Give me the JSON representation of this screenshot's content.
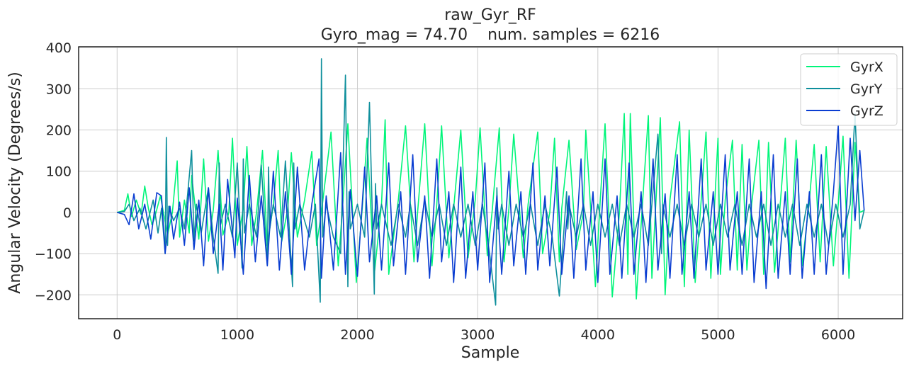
{
  "chart_data": {
    "type": "line",
    "title": "raw_Gyr_RF",
    "subtitle": "Gyro_mag = 74.70    num. samples = 6216",
    "xlabel": "Sample",
    "ylabel": "Angular Velocity (Degrees/s)",
    "xlim": [
      -320,
      6536
    ],
    "ylim": [
      -258,
      402
    ],
    "xticks": [
      0,
      1000,
      2000,
      3000,
      4000,
      5000,
      6000
    ],
    "xtick_labels": [
      "0",
      "1000",
      "2000",
      "3000",
      "4000",
      "5000",
      "6000"
    ],
    "yticks": [
      -200,
      -100,
      0,
      100,
      200,
      300,
      400
    ],
    "ytick_labels": [
      "−200",
      "−100",
      "0",
      "100",
      "200",
      "300",
      "400"
    ],
    "grid": true,
    "legend_position": "top-right",
    "series": [
      {
        "name": "GyrX",
        "color": "#00f57a",
        "x": [
          0,
          60,
          90,
          120,
          160,
          200,
          230,
          260,
          290,
          310,
          360,
          420,
          460,
          500,
          520,
          560,
          600,
          620,
          680,
          720,
          760,
          800,
          840,
          880,
          930,
          960,
          1000,
          1050,
          1080,
          1120,
          1160,
          1210,
          1250,
          1300,
          1340,
          1370,
          1420,
          1450,
          1500,
          1560,
          1620,
          1660,
          1700,
          1780,
          1840,
          1880,
          1920,
          1990,
          2040,
          2080,
          2140,
          2200,
          2230,
          2260,
          2340,
          2400,
          2470,
          2500,
          2560,
          2620,
          2660,
          2700,
          2760,
          2800,
          2860,
          2920,
          2980,
          3020,
          3080,
          3120,
          3180,
          3220,
          3260,
          3300,
          3380,
          3420,
          3500,
          3540,
          3600,
          3640,
          3680,
          3700,
          3760,
          3820,
          3880,
          3900,
          3980,
          4020,
          4060,
          4120,
          4180,
          4220,
          4250,
          4270,
          4320,
          4380,
          4420,
          4450,
          4520,
          4560,
          4600,
          4680,
          4720,
          4760,
          4810,
          4860,
          4900,
          4940,
          5000,
          5020,
          5060,
          5120,
          5160,
          5200,
          5240,
          5280,
          5340,
          5380,
          5420,
          5470,
          5520,
          5560,
          5600,
          5650,
          5700,
          5760,
          5800,
          5850,
          5900,
          5960,
          6000,
          6040,
          6090,
          6140,
          6180,
          6216
        ],
        "values": [
          0,
          5,
          45,
          -10,
          30,
          -5,
          64,
          10,
          -30,
          -15,
          40,
          -55,
          0,
          125,
          -60,
          30,
          -50,
          90,
          -65,
          130,
          -70,
          5,
          150,
          -55,
          0,
          180,
          -80,
          10,
          160,
          -80,
          0,
          150,
          -80,
          20,
          150,
          -70,
          10,
          145,
          -60,
          30,
          148,
          -80,
          0,
          195,
          -130,
          30,
          215,
          -170,
          10,
          180,
          -150,
          20,
          225,
          -150,
          30,
          210,
          -120,
          0,
          215,
          -130,
          20,
          210,
          -110,
          10,
          200,
          -110,
          30,
          205,
          -105,
          0,
          205,
          -120,
          10,
          190,
          -110,
          20,
          195,
          -100,
          0,
          180,
          -120,
          10,
          175,
          -90,
          0,
          200,
          -180,
          30,
          215,
          -205,
          0,
          240,
          -150,
          240,
          -210,
          60,
          235,
          -160,
          230,
          -200,
          30,
          220,
          -180,
          200,
          -170,
          30,
          195,
          -160,
          180,
          -150,
          30,
          175,
          -140,
          165,
          -140,
          20,
          175,
          -150,
          170,
          -145,
          30,
          180,
          -120,
          175,
          -130,
          30,
          165,
          -120,
          160,
          -130,
          20,
          185,
          -160,
          170,
          0,
          5
        ],
        "_": 0
      },
      {
        "name": "GyrY",
        "color": "#0e8f9c",
        "x": [
          0,
          60,
          100,
          140,
          190,
          240,
          300,
          340,
          370,
          400,
          410,
          420,
          430,
          470,
          520,
          560,
          620,
          640,
          660,
          700,
          760,
          800,
          840,
          850,
          860,
          900,
          960,
          1000,
          1040,
          1050,
          1060,
          1100,
          1160,
          1200,
          1250,
          1260,
          1270,
          1300,
          1360,
          1400,
          1460,
          1470,
          1480,
          1520,
          1600,
          1650,
          1690,
          1700,
          1710,
          1740,
          1800,
          1860,
          1900,
          1920,
          1930,
          1940,
          2000,
          2060,
          2100,
          2140,
          2150,
          2160,
          2200,
          2280,
          2340,
          2400,
          2440,
          2500,
          2560,
          2620,
          2680,
          2740,
          2800,
          2860,
          2920,
          2980,
          3040,
          3100,
          3150,
          3160,
          3170,
          3200,
          3260,
          3320,
          3380,
          3440,
          3500,
          3560,
          3620,
          3680,
          3740,
          3750,
          3760,
          3820,
          3880,
          3940,
          4000,
          4060,
          4120,
          4180,
          4240,
          4300,
          4360,
          4420,
          4500,
          4530,
          4540,
          4600,
          4660,
          4720,
          4780,
          4840,
          4900,
          4960,
          5020,
          5080,
          5140,
          5200,
          5260,
          5320,
          5380,
          5440,
          5500,
          5560,
          5620,
          5680,
          5740,
          5800,
          5860,
          5920,
          5980,
          6040,
          6100,
          6140,
          6180,
          6216
        ],
        "values": [
          0,
          2,
          20,
          -20,
          10,
          -40,
          30,
          -50,
          10,
          -100,
          182,
          -80,
          15,
          -20,
          10,
          -40,
          150,
          -70,
          20,
          -50,
          60,
          -60,
          -148,
          120,
          -30,
          20,
          -60,
          120,
          -135,
          130,
          -50,
          20,
          -60,
          115,
          -128,
          110,
          -40,
          20,
          -60,
          125,
          -180,
          120,
          -40,
          20,
          -60,
          20,
          -218,
          373,
          -60,
          20,
          -60,
          -100,
          333,
          -180,
          50,
          -40,
          20,
          -60,
          267,
          -198,
          70,
          -40,
          20,
          -80,
          20,
          -60,
          20,
          -80,
          30,
          -60,
          20,
          -80,
          20,
          -60,
          20,
          -80,
          20,
          -100,
          -225,
          60,
          -40,
          20,
          -80,
          20,
          -60,
          20,
          -80,
          20,
          -60,
          -203,
          50,
          -40,
          20,
          -60,
          20,
          -80,
          20,
          -60,
          20,
          -80,
          20,
          -60,
          20,
          -80,
          190,
          -100,
          20,
          -60,
          20,
          -80,
          20,
          -60,
          20,
          -80,
          20,
          -60,
          20,
          -80,
          20,
          -60,
          20,
          -80,
          20,
          -60,
          20,
          -80,
          20,
          -60,
          20,
          -80,
          20,
          -60,
          20,
          240,
          -40,
          5
        ],
        "_": 0
      },
      {
        "name": "GyrZ",
        "color": "#0a3dd1",
        "x": [
          0,
          60,
          100,
          140,
          180,
          230,
          280,
          330,
          370,
          400,
          440,
          470,
          520,
          560,
          600,
          640,
          680,
          720,
          760,
          800,
          850,
          880,
          920,
          980,
          1000,
          1050,
          1100,
          1150,
          1200,
          1250,
          1300,
          1350,
          1400,
          1450,
          1500,
          1560,
          1620,
          1680,
          1700,
          1740,
          1800,
          1860,
          1900,
          1940,
          2000,
          2060,
          2100,
          2160,
          2200,
          2260,
          2300,
          2360,
          2400,
          2460,
          2500,
          2560,
          2600,
          2660,
          2700,
          2760,
          2800,
          2860,
          2900,
          2960,
          3000,
          3060,
          3100,
          3160,
          3200,
          3260,
          3300,
          3360,
          3400,
          3460,
          3500,
          3560,
          3600,
          3660,
          3700,
          3760,
          3800,
          3860,
          3900,
          3960,
          4000,
          4060,
          4100,
          4160,
          4200,
          4260,
          4300,
          4360,
          4400,
          4460,
          4500,
          4560,
          4600,
          4660,
          4700,
          4760,
          4800,
          4860,
          4900,
          4960,
          5000,
          5060,
          5100,
          5160,
          5200,
          5260,
          5300,
          5360,
          5400,
          5460,
          5500,
          5560,
          5600,
          5660,
          5700,
          5760,
          5800,
          5860,
          5900,
          5960,
          6000,
          6040,
          6100,
          6140,
          6180,
          6216
        ],
        "values": [
          0,
          -5,
          -30,
          45,
          -40,
          20,
          -65,
          48,
          40,
          -100,
          15,
          -65,
          25,
          -80,
          60,
          -90,
          30,
          -130,
          60,
          -100,
          20,
          -140,
          80,
          -110,
          35,
          -150,
          90,
          -120,
          40,
          -130,
          100,
          -140,
          50,
          -150,
          110,
          -140,
          20,
          130,
          -160,
          40,
          -140,
          145,
          -150,
          55,
          -155,
          110,
          -120,
          40,
          -140,
          120,
          -130,
          50,
          -150,
          140,
          -120,
          40,
          -160,
          130,
          -120,
          50,
          -170,
          110,
          -160,
          50,
          -140,
          120,
          -170,
          40,
          -150,
          100,
          -130,
          50,
          -150,
          120,
          -140,
          40,
          -130,
          110,
          -150,
          40,
          -160,
          130,
          -140,
          50,
          -170,
          130,
          -150,
          40,
          -160,
          120,
          -150,
          50,
          -170,
          130,
          -140,
          45,
          -160,
          140,
          -150,
          50,
          -160,
          130,
          -140,
          50,
          -150,
          140,
          -140,
          50,
          -150,
          130,
          -170,
          50,
          -185,
          140,
          -160,
          50,
          -150,
          130,
          -160,
          50,
          -150,
          140,
          -150,
          50,
          210,
          -150,
          180,
          -20,
          150,
          5
        ],
        "_": 0
      }
    ]
  }
}
